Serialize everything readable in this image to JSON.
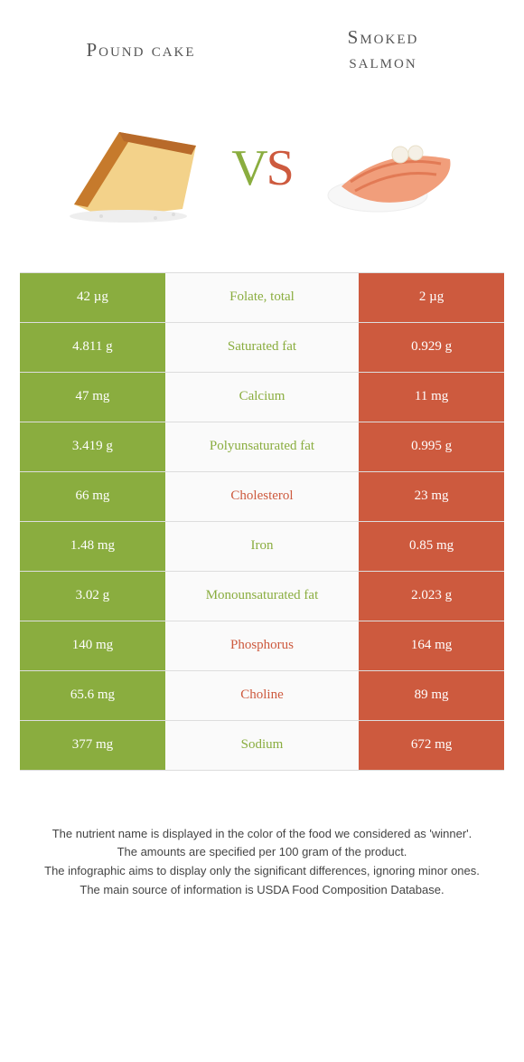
{
  "titles": {
    "left": "Pound cake",
    "right_line1": "Smoked",
    "right_line2": "salmon"
  },
  "colors": {
    "green": "#8aad3f",
    "orange": "#cd5a3e",
    "row_border": "#dddddd",
    "mid_bg": "#fafafa",
    "body_bg": "#ffffff",
    "title_text": "#555555",
    "footnote_text": "#444444"
  },
  "vs": {
    "v": "V",
    "s": "S"
  },
  "rows": [
    {
      "left": "42 µg",
      "label": "Folate, total",
      "right": "2 µg",
      "winner": "left"
    },
    {
      "left": "4.811 g",
      "label": "Saturated fat",
      "right": "0.929 g",
      "winner": "left"
    },
    {
      "left": "47 mg",
      "label": "Calcium",
      "right": "11 mg",
      "winner": "left"
    },
    {
      "left": "3.419 g",
      "label": "Polyunsaturated fat",
      "right": "0.995 g",
      "winner": "left"
    },
    {
      "left": "66 mg",
      "label": "Cholesterol",
      "right": "23 mg",
      "winner": "right"
    },
    {
      "left": "1.48 mg",
      "label": "Iron",
      "right": "0.85 mg",
      "winner": "left"
    },
    {
      "left": "3.02 g",
      "label": "Monounsaturated fat",
      "right": "2.023 g",
      "winner": "left"
    },
    {
      "left": "140 mg",
      "label": "Phosphorus",
      "right": "164 mg",
      "winner": "right"
    },
    {
      "left": "65.6 mg",
      "label": "Choline",
      "right": "89 mg",
      "winner": "right"
    },
    {
      "left": "377 mg",
      "label": "Sodium",
      "right": "672 mg",
      "winner": "left"
    }
  ],
  "footnotes": {
    "l1": "The nutrient name is displayed in the color of the food we considered as 'winner'.",
    "l2": "The amounts are specified per 100 gram of the product.",
    "l3": "The infographic aims to display only the significant differences, ignoring minor ones.",
    "l4": "The main source of information is USDA Food Composition Database."
  }
}
